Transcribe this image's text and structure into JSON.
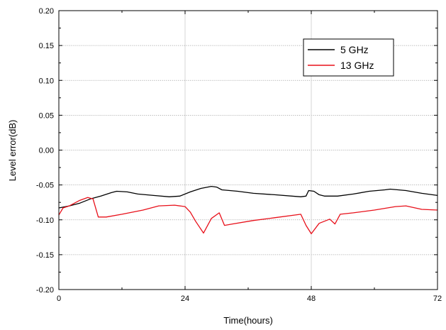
{
  "chart_data": {
    "type": "line",
    "title": "",
    "xlabel": "Time(hours)",
    "ylabel": "Level error(dB)",
    "xlim": [
      0,
      72
    ],
    "ylim": [
      -0.2,
      0.2
    ],
    "x_ticks": [
      0,
      24,
      48,
      72
    ],
    "x_tick_labels": [
      "0",
      "24",
      "48",
      "72"
    ],
    "y_ticks": [
      -0.2,
      -0.15,
      -0.1,
      -0.05,
      0.0,
      0.05,
      0.1,
      0.15,
      0.2
    ],
    "y_tick_labels": [
      "-0.20",
      "-0.15",
      "-0.10",
      "-0.05",
      "0.00",
      "0.05",
      "0.10",
      "0.15",
      "0.20"
    ],
    "grid": true,
    "legend_position": "top-right",
    "series": [
      {
        "name": "5 GHz",
        "color": "#000000",
        "points": [
          [
            0,
            -0.083
          ],
          [
            2,
            -0.08
          ],
          [
            4,
            -0.076
          ],
          [
            6,
            -0.07
          ],
          [
            8,
            -0.066
          ],
          [
            10,
            -0.061
          ],
          [
            11,
            -0.059
          ],
          [
            13,
            -0.06
          ],
          [
            15,
            -0.063
          ],
          [
            18,
            -0.065
          ],
          [
            21,
            -0.067
          ],
          [
            23,
            -0.066
          ],
          [
            25,
            -0.06
          ],
          [
            27,
            -0.055
          ],
          [
            29,
            -0.052
          ],
          [
            30,
            -0.053
          ],
          [
            31,
            -0.057
          ],
          [
            34,
            -0.059
          ],
          [
            37,
            -0.062
          ],
          [
            41,
            -0.064
          ],
          [
            46,
            -0.067
          ],
          [
            47,
            -0.066
          ],
          [
            47.5,
            -0.058
          ],
          [
            48.5,
            -0.059
          ],
          [
            49.5,
            -0.064
          ],
          [
            50.5,
            -0.066
          ],
          [
            53,
            -0.066
          ],
          [
            56,
            -0.063
          ],
          [
            59,
            -0.059
          ],
          [
            62,
            -0.057
          ],
          [
            63,
            -0.056
          ],
          [
            66,
            -0.058
          ],
          [
            69,
            -0.062
          ],
          [
            72,
            -0.065
          ]
        ]
      },
      {
        "name": "13 GHz",
        "color": "#e8101a",
        "points": [
          [
            0,
            -0.093
          ],
          [
            0.8,
            -0.083
          ],
          [
            2,
            -0.08
          ],
          [
            4,
            -0.072
          ],
          [
            5.5,
            -0.068
          ],
          [
            6.5,
            -0.07
          ],
          [
            7.5,
            -0.096
          ],
          [
            9,
            -0.096
          ],
          [
            12,
            -0.092
          ],
          [
            16,
            -0.086
          ],
          [
            19,
            -0.08
          ],
          [
            22,
            -0.079
          ],
          [
            24,
            -0.081
          ],
          [
            25,
            -0.089
          ],
          [
            26,
            -0.102
          ],
          [
            27.5,
            -0.119
          ],
          [
            29,
            -0.098
          ],
          [
            30.5,
            -0.09
          ],
          [
            31.5,
            -0.108
          ],
          [
            33,
            -0.106
          ],
          [
            37,
            -0.101
          ],
          [
            41,
            -0.097
          ],
          [
            45,
            -0.093
          ],
          [
            46,
            -0.092
          ],
          [
            47,
            -0.108
          ],
          [
            48,
            -0.12
          ],
          [
            49.5,
            -0.105
          ],
          [
            51.5,
            -0.099
          ],
          [
            52.5,
            -0.106
          ],
          [
            53.5,
            -0.092
          ],
          [
            56,
            -0.09
          ],
          [
            60,
            -0.086
          ],
          [
            64,
            -0.081
          ],
          [
            66,
            -0.08
          ],
          [
            69,
            -0.085
          ],
          [
            72,
            -0.086
          ]
        ]
      }
    ]
  }
}
